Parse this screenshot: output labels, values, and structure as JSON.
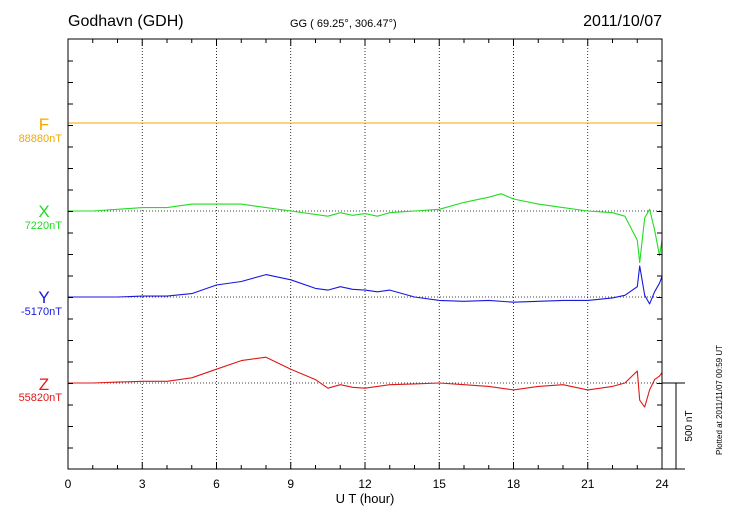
{
  "header": {
    "station": "Godhavn (GDH)",
    "coords": "GG ( 69.25°, 306.47°)",
    "date": "2011/10/07"
  },
  "footer": {
    "plotted": "Plotted at 2011/11/07 00:59 UT"
  },
  "chart_data": {
    "type": "line",
    "xlabel": "U T (hour)",
    "xlim": [
      0,
      24
    ],
    "xticks": [
      "0",
      "3",
      "6",
      "9",
      "12",
      "15",
      "18",
      "21",
      "24"
    ],
    "grid": true,
    "scale_bar": {
      "value_nT": 500,
      "label": "500 nT"
    },
    "series": [
      {
        "name": "F",
        "baseline_label": "88880nT",
        "baseline": 88880,
        "color": "#f5a800",
        "x": [
          0,
          24
        ],
        "y": [
          88880,
          88880
        ]
      },
      {
        "name": "X",
        "baseline_label": "7220nT",
        "baseline": 7220,
        "color": "#22dd22",
        "x": [
          0,
          1,
          2,
          3,
          4,
          5,
          6,
          7,
          8,
          9,
          10,
          10.5,
          11,
          11.5,
          12,
          12.5,
          13,
          14,
          15,
          16,
          17,
          17.5,
          18,
          19,
          20,
          21,
          22,
          22.5,
          23,
          23.1,
          23.3,
          23.5,
          23.7,
          23.9,
          24
        ],
        "y": [
          7220,
          7220,
          7230,
          7240,
          7240,
          7260,
          7260,
          7260,
          7240,
          7220,
          7200,
          7190,
          7210,
          7195,
          7205,
          7190,
          7210,
          7220,
          7230,
          7270,
          7300,
          7320,
          7290,
          7260,
          7240,
          7220,
          7210,
          7190,
          7050,
          6920,
          7180,
          7230,
          7110,
          6960,
          7050
        ]
      },
      {
        "name": "Y",
        "baseline_label": "-5170nT",
        "baseline": -5170,
        "color": "#1818e0",
        "x": [
          0,
          1,
          2,
          3,
          4,
          5,
          6,
          7,
          8,
          9,
          10,
          10.5,
          11,
          11.5,
          12,
          12.5,
          13,
          14,
          15,
          16,
          17,
          18,
          19,
          20,
          21,
          22,
          22.5,
          23,
          23.1,
          23.3,
          23.5,
          23.7,
          23.9,
          24
        ],
        "y": [
          -5170,
          -5170,
          -5170,
          -5165,
          -5165,
          -5150,
          -5100,
          -5080,
          -5040,
          -5070,
          -5120,
          -5130,
          -5110,
          -5125,
          -5130,
          -5140,
          -5130,
          -5170,
          -5190,
          -5195,
          -5190,
          -5200,
          -5195,
          -5190,
          -5190,
          -5175,
          -5160,
          -5110,
          -4990,
          -5160,
          -5210,
          -5140,
          -5090,
          -5050
        ]
      },
      {
        "name": "Z",
        "baseline_label": "55820nT",
        "baseline": 55820,
        "color": "#e01818",
        "x": [
          0,
          1,
          2,
          3,
          4,
          5,
          6,
          7,
          8,
          9,
          10,
          10.5,
          11,
          11.5,
          12,
          12.5,
          13,
          14,
          15,
          16,
          17,
          18,
          19,
          20,
          21,
          22,
          22.5,
          23,
          23.1,
          23.3,
          23.5,
          23.7,
          23.9,
          24
        ],
        "y": [
          55820,
          55820,
          55825,
          55830,
          55830,
          55850,
          55900,
          55950,
          55970,
          55900,
          55840,
          55790,
          55810,
          55795,
          55790,
          55800,
          55810,
          55815,
          55820,
          55810,
          55800,
          55780,
          55800,
          55810,
          55780,
          55800,
          55820,
          55890,
          55720,
          55680,
          55780,
          55840,
          55860,
          55880
        ]
      }
    ]
  }
}
